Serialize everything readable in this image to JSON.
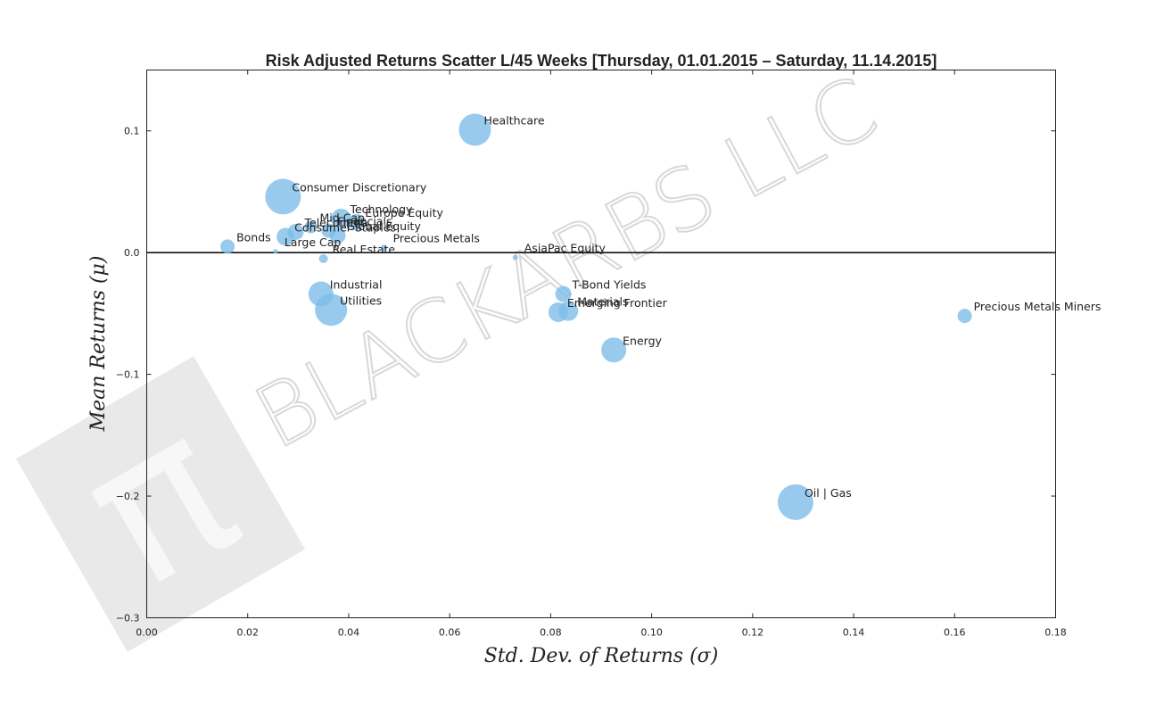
{
  "chart_data": {
    "type": "scatter",
    "title": "Risk Adjusted Returns Scatter L/45 Weeks [Thursday, 01.01.2015 – Saturday, 11.14.2015]",
    "xlabel": "Std. Dev. of Returns  (σ)",
    "ylabel": "Mean Returns  (μ)",
    "xlim": [
      0.0,
      0.18
    ],
    "ylim": [
      -0.3,
      0.15
    ],
    "xticks": [
      0.0,
      0.02,
      0.04,
      0.06,
      0.08,
      0.1,
      0.12,
      0.14,
      0.16,
      0.18
    ],
    "xtick_labels": [
      "0.00",
      "0.02",
      "0.04",
      "0.06",
      "0.08",
      "0.10",
      "0.12",
      "0.14",
      "0.16",
      "0.18"
    ],
    "yticks": [
      -0.3,
      -0.2,
      -0.1,
      0.0,
      0.1
    ],
    "ytick_labels": [
      "−0.3",
      "−0.2",
      "−0.1",
      "0.0",
      "0.1"
    ],
    "zero_line": true,
    "grid": false,
    "legend": "none",
    "marker_color": "#7dbde8",
    "points": [
      {
        "label": "Healthcare",
        "x": 0.065,
        "y": 0.101,
        "size": 18
      },
      {
        "label": "Consumer Discretionary",
        "x": 0.027,
        "y": 0.046,
        "size": 20
      },
      {
        "label": "Technology",
        "x": 0.0385,
        "y": 0.028,
        "size": 11
      },
      {
        "label": "Europe Equity",
        "x": 0.0415,
        "y": 0.025,
        "size": 9
      },
      {
        "label": "Mid Cap",
        "x": 0.0325,
        "y": 0.021,
        "size": 7
      },
      {
        "label": "Financials",
        "x": 0.036,
        "y": 0.018,
        "size": 8
      },
      {
        "label": "Telecomms",
        "x": 0.0295,
        "y": 0.017,
        "size": 9
      },
      {
        "label": "Consumer Staples",
        "x": 0.0275,
        "y": 0.013,
        "size": 10
      },
      {
        "label": "Global Equity",
        "x": 0.0378,
        "y": 0.014,
        "size": 9
      },
      {
        "label": "Precious Metals",
        "x": 0.047,
        "y": 0.004,
        "size": 3.5
      },
      {
        "label": "Bonds",
        "x": 0.016,
        "y": 0.005,
        "size": 8
      },
      {
        "label": "Large Cap",
        "x": 0.0255,
        "y": 0.001,
        "size": 2.5
      },
      {
        "label": "Real Estate",
        "x": 0.035,
        "y": -0.005,
        "size": 5
      },
      {
        "label": "AsiaPac Equity",
        "x": 0.073,
        "y": -0.004,
        "size": 3
      },
      {
        "label": "Industrial",
        "x": 0.0345,
        "y": -0.034,
        "size": 14
      },
      {
        "label": "Utilities",
        "x": 0.0365,
        "y": -0.047,
        "size": 18
      },
      {
        "label": "T-Bond Yields",
        "x": 0.0825,
        "y": -0.034,
        "size": 9
      },
      {
        "label": "Materials",
        "x": 0.0835,
        "y": -0.048,
        "size": 11
      },
      {
        "label": "Emerging Frontier",
        "x": 0.0815,
        "y": -0.049,
        "size": 11
      },
      {
        "label": "Precious Metals Miners",
        "x": 0.162,
        "y": -0.052,
        "size": 8
      },
      {
        "label": "Energy",
        "x": 0.0925,
        "y": -0.08,
        "size": 14
      },
      {
        "label": "Oil | Gas",
        "x": 0.1285,
        "y": -0.205,
        "size": 20
      }
    ]
  },
  "watermark": {
    "text": "BLACKARBS LLC",
    "logo_symbol": "π",
    "logo_name": "pi-logo-icon"
  }
}
